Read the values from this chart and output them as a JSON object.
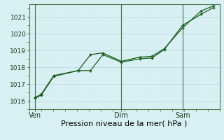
{
  "title": "",
  "xlabel": "Pression niveau de la mer( hPa )",
  "background_color": "#d8f0f4",
  "grid_major_color": "#c0dde4",
  "grid_minor_color": "#daeef2",
  "line_color": "#1a5c1a",
  "ylim": [
    1015.5,
    1021.75
  ],
  "yticks": [
    1016,
    1017,
    1018,
    1019,
    1020,
    1021
  ],
  "line1_x": [
    0,
    0.5,
    1.5,
    3.5,
    4.5,
    5.5,
    7.0,
    8.5,
    9.5,
    10.5,
    12.0,
    13.5,
    14.5
  ],
  "line1_y": [
    1016.15,
    1016.35,
    1017.45,
    1017.8,
    1017.8,
    1018.75,
    1018.3,
    1018.5,
    1018.55,
    1019.05,
    1020.5,
    1021.15,
    1021.55
  ],
  "line2_x": [
    0,
    0.5,
    1.5,
    3.5,
    4.5,
    5.5,
    7.0,
    8.5,
    9.5,
    10.5,
    12.0,
    13.5,
    14.5
  ],
  "line2_y": [
    1016.2,
    1016.4,
    1017.5,
    1017.8,
    1018.75,
    1018.85,
    1018.35,
    1018.6,
    1018.65,
    1019.1,
    1020.35,
    1021.35,
    1021.65
  ],
  "xtick_positions": [
    0,
    7.0,
    12.0
  ],
  "xtick_labels": [
    "Ven",
    "Dim",
    "Sam"
  ],
  "vline_positions": [
    0,
    7.0,
    12.0
  ],
  "xlim": [
    -0.5,
    15.0
  ],
  "figsize": [
    3.2,
    2.0
  ],
  "dpi": 100,
  "xlabel_fontsize": 8,
  "ytick_fontsize": 6.5,
  "xtick_fontsize": 7
}
